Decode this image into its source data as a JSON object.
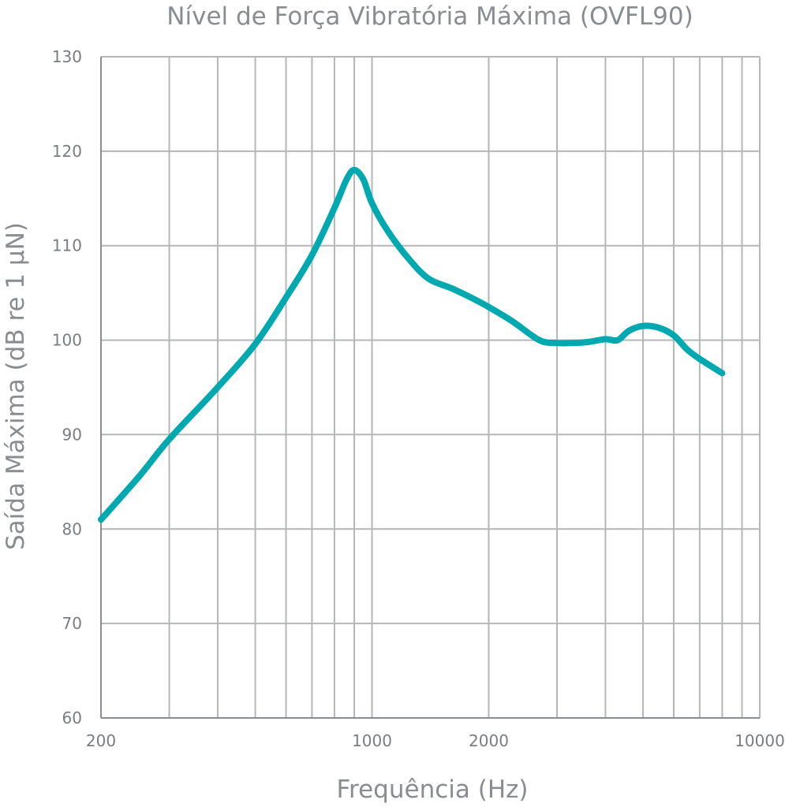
{
  "chart_data": {
    "type": "line",
    "title": "Nível de Força Vibratória Máxima (OVFL90)",
    "xlabel": "Frequência (Hz)",
    "ylabel": "Saída Máxima (dB re 1 μN)",
    "x_scale": "log",
    "xlim": [
      200,
      10000
    ],
    "ylim": [
      60,
      130
    ],
    "grid": true,
    "x_ticks": [
      200,
      1000,
      2000,
      10000
    ],
    "x_tick_labels": [
      "200",
      "1000",
      "2000",
      "10000"
    ],
    "y_ticks": [
      60,
      70,
      80,
      90,
      100,
      110,
      120,
      130
    ],
    "y_tick_labels": [
      "60",
      "70",
      "80",
      "90",
      "100",
      "110",
      "120",
      "130"
    ],
    "color": "#00a8b0",
    "series": [
      {
        "x": [
          200,
          250,
          300,
          400,
          500,
          600,
          700,
          800,
          860,
          900,
          950,
          1000,
          1100,
          1250,
          1400,
          1600,
          1800,
          2000,
          2300,
          2700,
          3000,
          3300,
          3600,
          4000,
          4300,
          4600,
          5000,
          5500,
          6000,
          6500,
          7000,
          8000
        ],
        "y": [
          81,
          85.5,
          89.5,
          95,
          99.6,
          104.5,
          109,
          114,
          117,
          118,
          117,
          114.5,
          111.5,
          108.5,
          106.5,
          105.5,
          104.5,
          103.5,
          102,
          100,
          99.7,
          99.7,
          99.8,
          100.1,
          100,
          101,
          101.5,
          101.3,
          100.5,
          99,
          98,
          96.5
        ]
      }
    ]
  }
}
